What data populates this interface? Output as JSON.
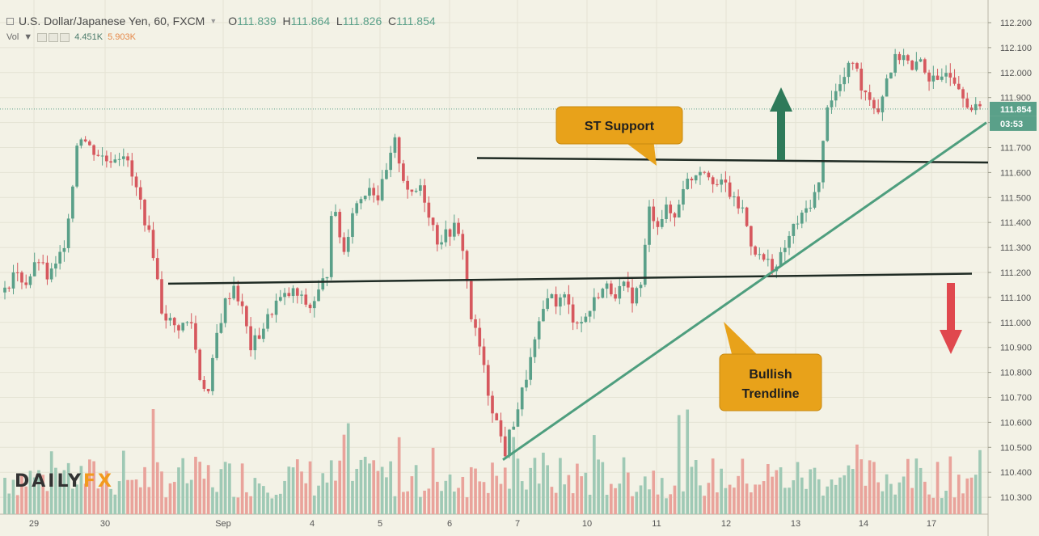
{
  "header": {
    "symbol": "U.S. Dollar/Japanese Yen, 60, FXCM",
    "open_label": "O",
    "open": "111.839",
    "high_label": "H",
    "high": "111.864",
    "low_label": "L",
    "low": "111.826",
    "close_label": "C",
    "close": "111.854"
  },
  "volume": {
    "label": "Vol",
    "value1": "4.451K",
    "value2": "5.903K"
  },
  "logo": {
    "part1": "DAILY",
    "part2": "FX"
  },
  "annotations": {
    "st_support": "ST Support",
    "trendline_1": "Bullish",
    "trendline_2": "Trendline"
  },
  "price_tags": {
    "last": "111.854",
    "countdown": "03:53"
  },
  "colors": {
    "background": "#f3f2e6",
    "up": "#5aa089",
    "down": "#d6585e",
    "callout": "#e8a21a",
    "trendline": "#4e9e7e",
    "arrow_up": "#2e7a5a",
    "arrow_down": "#e0484e"
  },
  "chart_data": {
    "type": "candlestick",
    "title": "U.S. Dollar/Japanese Yen, 60, FXCM",
    "ylim": [
      110.25,
      112.25
    ],
    "y_ticks": [
      "112.200",
      "112.100",
      "112.000",
      "111.900",
      "111.800",
      "111.700",
      "111.600",
      "111.500",
      "111.400",
      "111.300",
      "111.200",
      "111.100",
      "111.000",
      "110.900",
      "110.800",
      "110.700",
      "110.600",
      "110.500",
      "110.400",
      "110.300"
    ],
    "x_ticks": [
      "29",
      "30",
      "Sep",
      "4",
      "5",
      "6",
      "7",
      "10",
      "11",
      "12",
      "13",
      "14",
      "17"
    ],
    "close_path": [
      [
        0,
        111.12
      ],
      [
        2,
        111.2
      ],
      [
        5,
        111.16
      ],
      [
        8,
        111.25
      ],
      [
        10,
        111.18
      ],
      [
        12,
        111.22
      ],
      [
        14,
        111.32
      ],
      [
        16,
        111.55
      ],
      [
        17,
        111.72
      ],
      [
        18,
        111.75
      ],
      [
        20,
        111.7
      ],
      [
        24,
        111.65
      ],
      [
        28,
        111.68
      ],
      [
        32,
        111.48
      ],
      [
        35,
        111.28
      ],
      [
        37,
        111.05
      ],
      [
        40,
        110.98
      ],
      [
        44,
        111.0
      ],
      [
        46,
        110.78
      ],
      [
        48,
        110.72
      ],
      [
        50,
        110.95
      ],
      [
        52,
        111.08
      ],
      [
        54,
        111.15
      ],
      [
        56,
        111.05
      ],
      [
        58,
        110.9
      ],
      [
        60,
        110.95
      ],
      [
        64,
        111.08
      ],
      [
        68,
        111.12
      ],
      [
        72,
        111.06
      ],
      [
        74,
        111.12
      ],
      [
        76,
        111.2
      ],
      [
        77,
        111.45
      ],
      [
        78,
        111.42
      ],
      [
        80,
        111.28
      ],
      [
        82,
        111.45
      ],
      [
        86,
        111.55
      ],
      [
        88,
        111.5
      ],
      [
        90,
        111.6
      ],
      [
        92,
        111.72
      ],
      [
        94,
        111.58
      ],
      [
        96,
        111.5
      ],
      [
        98,
        111.55
      ],
      [
        100,
        111.44
      ],
      [
        102,
        111.33
      ],
      [
        104,
        111.35
      ],
      [
        106,
        111.38
      ],
      [
        108,
        111.3
      ],
      [
        110,
        111.02
      ],
      [
        112,
        110.9
      ],
      [
        114,
        110.72
      ],
      [
        116,
        110.6
      ],
      [
        118,
        110.48
      ],
      [
        119,
        110.55
      ],
      [
        120,
        110.6
      ],
      [
        122,
        110.72
      ],
      [
        124,
        110.85
      ],
      [
        126,
        110.98
      ],
      [
        128,
        111.12
      ],
      [
        130,
        111.08
      ],
      [
        132,
        111.1
      ],
      [
        134,
        111.02
      ],
      [
        136,
        111.0
      ],
      [
        138,
        111.05
      ],
      [
        140,
        111.12
      ],
      [
        142,
        111.14
      ],
      [
        144,
        111.12
      ],
      [
        146,
        111.14
      ],
      [
        148,
        111.1
      ],
      [
        150,
        111.15
      ],
      [
        152,
        111.45
      ],
      [
        154,
        111.4
      ],
      [
        156,
        111.45
      ],
      [
        158,
        111.42
      ],
      [
        160,
        111.55
      ],
      [
        162,
        111.58
      ],
      [
        164,
        111.62
      ],
      [
        166,
        111.6
      ],
      [
        168,
        111.55
      ],
      [
        170,
        111.55
      ],
      [
        172,
        111.48
      ],
      [
        174,
        111.45
      ],
      [
        176,
        111.32
      ],
      [
        178,
        111.26
      ],
      [
        180,
        111.24
      ],
      [
        182,
        111.22
      ],
      [
        184,
        111.3
      ],
      [
        186,
        111.38
      ],
      [
        188,
        111.42
      ],
      [
        190,
        111.48
      ],
      [
        192,
        111.55
      ],
      [
        194,
        111.88
      ],
      [
        196,
        111.92
      ],
      [
        198,
        111.98
      ],
      [
        200,
        112.05
      ],
      [
        202,
        111.95
      ],
      [
        204,
        111.9
      ],
      [
        206,
        111.85
      ],
      [
        208,
        111.98
      ],
      [
        210,
        112.05
      ],
      [
        212,
        112.08
      ],
      [
        214,
        112.0
      ],
      [
        216,
        112.05
      ],
      [
        218,
        111.98
      ],
      [
        220,
        111.95
      ],
      [
        222,
        112.02
      ],
      [
        224,
        111.98
      ],
      [
        226,
        111.92
      ],
      [
        228,
        111.85
      ],
      [
        230,
        111.854
      ]
    ],
    "volume_range": [
      0,
      10
    ],
    "support_level": 111.645,
    "resistance_level": 111.18,
    "trendline": {
      "from": [
        119,
        110.45
      ],
      "to": [
        230,
        111.8
      ]
    }
  }
}
